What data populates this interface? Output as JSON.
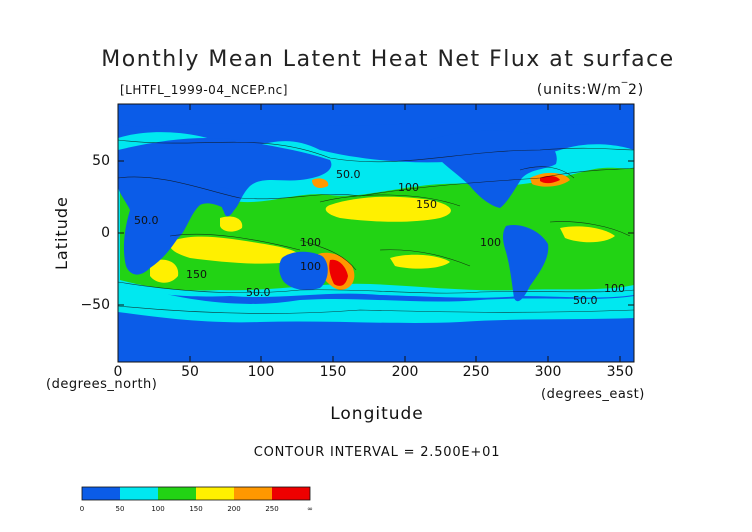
{
  "title": "Monthly Mean Latent Heat Net Flux at surface",
  "file_label": "[LHTFL_1999-04_NCEP.nc]",
  "units_label": "(units:W/m^2)",
  "y_axis_label": "Latitude",
  "x_axis_label": "Longitude",
  "y_units_label": "(degrees_north)",
  "x_units_label": "(degrees_east)",
  "contour_interval_text": "CONTOUR INTERVAL = 2.500E+01",
  "chart_data": {
    "type": "heatmap",
    "title": "Monthly Mean Latent Heat Net Flux at surface",
    "xlabel": "Longitude",
    "ylabel": "Latitude",
    "xlim": [
      0,
      360
    ],
    "ylim": [
      -90,
      90
    ],
    "x_ticks": [
      "0",
      "50",
      "100",
      "150",
      "200",
      "250",
      "300",
      "350"
    ],
    "y_ticks": [
      "50",
      "0",
      "−50"
    ],
    "contour_labels": [
      "50.0",
      "100",
      "150",
      "50.0",
      "100",
      "150",
      "100",
      "100",
      "50.0",
      "50.0",
      "100"
    ],
    "colorbar": {
      "levels": [
        "0",
        "50",
        "100",
        "150",
        "200",
        "250",
        "∞"
      ],
      "colors": [
        "#0b5ce8",
        "#00e8f0",
        "#22d314",
        "#fff000",
        "#ff9800",
        "#ee0000"
      ]
    }
  }
}
